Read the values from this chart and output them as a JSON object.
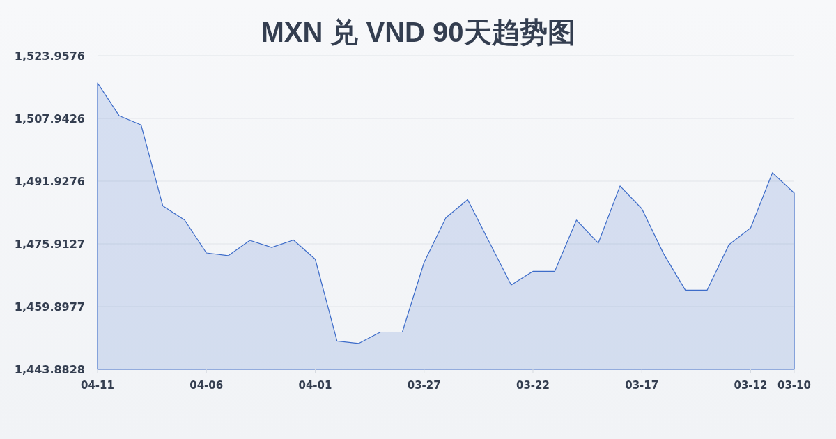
{
  "chart_data": {
    "type": "area",
    "title": "MXN 兑 VND 90天趋势图",
    "x": [
      "--04-11",
      "--04-10",
      "--04-09",
      "--04-08",
      "--04-07",
      "--04-06",
      "--04-05",
      "--04-04",
      "--04-03",
      "--04-02",
      "--04-01",
      "--03-31",
      "--03-30",
      "--03-29",
      "--03-28",
      "--03-27",
      "--03-26",
      "--03-25",
      "--03-24",
      "--03-23",
      "--03-22",
      "--03-21",
      "--03-20",
      "--03-19",
      "--03-18",
      "--03-17",
      "--03-16",
      "--03-15",
      "--03-14",
      "--03-13",
      "--03-12",
      "--03-11",
      "--03-10"
    ],
    "series": [
      {
        "color": "#3d6cc9",
        "values": [
          1517.0,
          1508.6,
          1506.3,
          1485.6,
          1482.0,
          1473.6,
          1472.9,
          1476.8,
          1475.0,
          1476.9,
          1472.0,
          1451.1,
          1450.5,
          1453.4,
          1453.4,
          1471.2,
          1482.6,
          1487.2,
          1476.3,
          1465.4,
          1468.9,
          1468.9,
          1482.0,
          1476.1,
          1490.7,
          1484.9,
          1473.4,
          1464.1,
          1464.1,
          1475.7,
          1480.0,
          1494.1,
          1488.9
        ]
      }
    ],
    "xlim": [
      "--04-11",
      "--03-10"
    ],
    "xticks": [
      {
        "value": "--04-11",
        "label": "04-11"
      },
      {
        "value": "--04-06",
        "label": "04-06"
      },
      {
        "value": "--04-01",
        "label": "04-01"
      },
      {
        "value": "--03-27",
        "label": "03-27"
      },
      {
        "value": "--03-22",
        "label": "03-22"
      },
      {
        "value": "--03-17",
        "label": "03-17"
      },
      {
        "value": "--03-12",
        "label": "03-12"
      },
      {
        "value": "--03-10",
        "label": "03-10"
      }
    ],
    "ylim": [
      1443.8828,
      1523.9576
    ],
    "yticks": [
      {
        "value": 1443.8828,
        "label": "1,443.8828"
      },
      {
        "value": 1459.8977,
        "label": "1,459.8977"
      },
      {
        "value": 1475.9127,
        "label": "1,475.9127"
      },
      {
        "value": 1491.9276,
        "label": "1,491.9276"
      },
      {
        "value": 1507.9426,
        "label": "1,507.9426"
      },
      {
        "value": 1523.9576,
        "label": "1,523.9576"
      }
    ],
    "grid": "y"
  }
}
